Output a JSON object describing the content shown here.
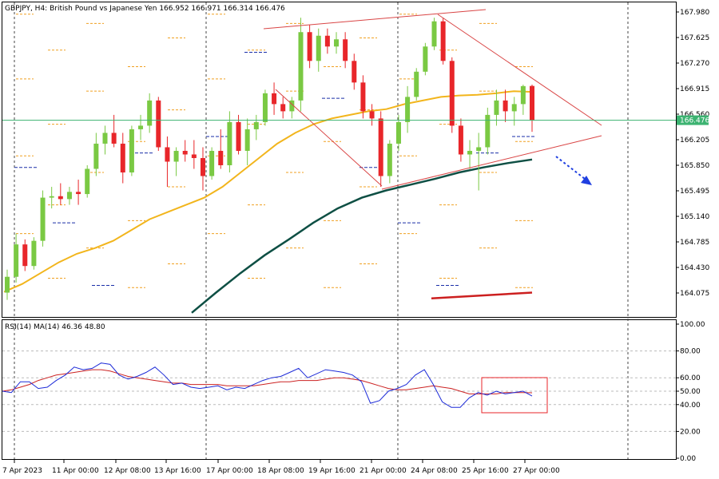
{
  "header": {
    "symbol_line": "GBPJPY, H4:  British Pound vs Japanese Yen  166.952 166.971 166.314 166.476"
  },
  "price_axis": {
    "ticks": [
      "167.980",
      "167.625",
      "167.270",
      "166.915",
      "166.560",
      "166.205",
      "165.850",
      "165.495",
      "165.140",
      "164.785",
      "164.430",
      "164.075"
    ],
    "current_price": "166.476"
  },
  "rsi_panel": {
    "label": "RSI(14) MA(14) 46.36 48.80",
    "ticks": [
      "100.00",
      "80.00",
      "60.00",
      "50.00",
      "40.00",
      "20.00",
      "0.00"
    ]
  },
  "time_axis": {
    "labels": [
      "7 Apr 2023",
      "11 Apr 00:00",
      "12 Apr 08:00",
      "13 Apr 16:00",
      "17 Apr 00:00",
      "18 Apr 08:00",
      "19 Apr 16:00",
      "21 Apr 00:00",
      "24 Apr 08:00",
      "25 Apr 16:00",
      "27 Apr 00:00"
    ]
  },
  "colors": {
    "bull": "#7ac943",
    "bear": "#e8262a",
    "ma_fast": "#f2b51c",
    "ma_slow": "#0e4f44",
    "ma_long": "#cc1f1f",
    "price_line": "#3cb371",
    "trendline": "#d94545",
    "rsi_line": "#1d2bd8",
    "rsi_ma": "#cc2222",
    "pivot_orange": "#f0a020",
    "pivot_blue": "#1a2ea8",
    "arrow": "#1f3fe0"
  },
  "chart_data": {
    "type": "candlestick",
    "timeframe": "H4",
    "candles": [
      {
        "o": 164.08,
        "h": 164.4,
        "l": 163.98,
        "c": 164.3
      },
      {
        "o": 164.3,
        "h": 164.9,
        "l": 164.22,
        "c": 164.75
      },
      {
        "o": 164.75,
        "h": 164.82,
        "l": 164.38,
        "c": 164.45
      },
      {
        "o": 164.45,
        "h": 164.85,
        "l": 164.4,
        "c": 164.8
      },
      {
        "o": 164.8,
        "h": 165.5,
        "l": 164.72,
        "c": 165.4
      },
      {
        "o": 165.4,
        "h": 165.55,
        "l": 165.25,
        "c": 165.42
      },
      {
        "o": 165.42,
        "h": 165.6,
        "l": 165.3,
        "c": 165.38
      },
      {
        "o": 165.38,
        "h": 165.55,
        "l": 165.3,
        "c": 165.48
      },
      {
        "o": 165.48,
        "h": 165.65,
        "l": 165.3,
        "c": 165.45
      },
      {
        "o": 165.45,
        "h": 165.85,
        "l": 165.4,
        "c": 165.8
      },
      {
        "o": 165.8,
        "h": 166.3,
        "l": 165.7,
        "c": 166.15
      },
      {
        "o": 166.15,
        "h": 166.4,
        "l": 166.0,
        "c": 166.3
      },
      {
        "o": 166.3,
        "h": 166.55,
        "l": 166.1,
        "c": 166.15
      },
      {
        "o": 166.15,
        "h": 166.3,
        "l": 165.6,
        "c": 165.75
      },
      {
        "o": 165.75,
        "h": 166.4,
        "l": 165.7,
        "c": 166.35
      },
      {
        "o": 166.35,
        "h": 166.55,
        "l": 166.2,
        "c": 166.4
      },
      {
        "o": 166.4,
        "h": 166.85,
        "l": 166.3,
        "c": 166.75
      },
      {
        "o": 166.75,
        "h": 166.8,
        "l": 166.05,
        "c": 166.1
      },
      {
        "o": 166.1,
        "h": 166.25,
        "l": 165.55,
        "c": 165.9
      },
      {
        "o": 165.9,
        "h": 166.1,
        "l": 165.7,
        "c": 166.05
      },
      {
        "o": 166.05,
        "h": 166.2,
        "l": 165.9,
        "c": 166.0
      },
      {
        "o": 166.0,
        "h": 166.2,
        "l": 165.8,
        "c": 165.95
      },
      {
        "o": 165.95,
        "h": 166.1,
        "l": 165.5,
        "c": 165.7
      },
      {
        "o": 165.7,
        "h": 166.1,
        "l": 165.65,
        "c": 166.05
      },
      {
        "o": 166.05,
        "h": 166.35,
        "l": 165.8,
        "c": 165.85
      },
      {
        "o": 165.85,
        "h": 166.6,
        "l": 165.75,
        "c": 166.45
      },
      {
        "o": 166.45,
        "h": 166.55,
        "l": 166.0,
        "c": 166.05
      },
      {
        "o": 166.05,
        "h": 166.5,
        "l": 165.85,
        "c": 166.35
      },
      {
        "o": 166.35,
        "h": 166.55,
        "l": 166.2,
        "c": 166.45
      },
      {
        "o": 166.45,
        "h": 166.9,
        "l": 166.4,
        "c": 166.85
      },
      {
        "o": 166.85,
        "h": 167.0,
        "l": 166.55,
        "c": 166.7
      },
      {
        "o": 166.7,
        "h": 166.8,
        "l": 166.5,
        "c": 166.6
      },
      {
        "o": 166.6,
        "h": 166.8,
        "l": 166.5,
        "c": 166.75
      },
      {
        "o": 166.75,
        "h": 167.9,
        "l": 166.6,
        "c": 167.7
      },
      {
        "o": 167.7,
        "h": 167.8,
        "l": 167.2,
        "c": 167.3
      },
      {
        "o": 167.3,
        "h": 167.75,
        "l": 167.15,
        "c": 167.65
      },
      {
        "o": 167.65,
        "h": 167.75,
        "l": 167.4,
        "c": 167.5
      },
      {
        "o": 167.5,
        "h": 167.7,
        "l": 167.4,
        "c": 167.6
      },
      {
        "o": 167.6,
        "h": 167.7,
        "l": 167.2,
        "c": 167.3
      },
      {
        "o": 167.3,
        "h": 167.4,
        "l": 166.9,
        "c": 167.0
      },
      {
        "o": 167.0,
        "h": 167.1,
        "l": 166.5,
        "c": 166.6
      },
      {
        "o": 166.6,
        "h": 166.7,
        "l": 166.4,
        "c": 166.5
      },
      {
        "o": 166.5,
        "h": 166.6,
        "l": 165.55,
        "c": 165.7
      },
      {
        "o": 165.7,
        "h": 166.2,
        "l": 165.6,
        "c": 166.15
      },
      {
        "o": 166.15,
        "h": 166.55,
        "l": 166.05,
        "c": 166.45
      },
      {
        "o": 166.45,
        "h": 166.95,
        "l": 166.3,
        "c": 166.8
      },
      {
        "o": 166.8,
        "h": 167.2,
        "l": 166.75,
        "c": 167.15
      },
      {
        "o": 167.15,
        "h": 167.55,
        "l": 167.1,
        "c": 167.5
      },
      {
        "o": 167.5,
        "h": 167.9,
        "l": 167.45,
        "c": 167.85
      },
      {
        "o": 167.85,
        "h": 167.9,
        "l": 167.25,
        "c": 167.3
      },
      {
        "o": 167.3,
        "h": 167.35,
        "l": 166.3,
        "c": 166.4
      },
      {
        "o": 166.4,
        "h": 166.5,
        "l": 165.9,
        "c": 166.0
      },
      {
        "o": 166.0,
        "h": 166.2,
        "l": 165.8,
        "c": 166.05
      },
      {
        "o": 166.05,
        "h": 166.3,
        "l": 165.5,
        "c": 166.1
      },
      {
        "o": 166.1,
        "h": 166.65,
        "l": 166.0,
        "c": 166.55
      },
      {
        "o": 166.55,
        "h": 166.9,
        "l": 166.4,
        "c": 166.75
      },
      {
        "o": 166.75,
        "h": 166.9,
        "l": 166.45,
        "c": 166.6
      },
      {
        "o": 166.6,
        "h": 166.8,
        "l": 166.4,
        "c": 166.7
      },
      {
        "o": 166.7,
        "h": 166.97,
        "l": 166.55,
        "c": 166.95
      },
      {
        "o": 166.952,
        "h": 166.971,
        "l": 166.314,
        "c": 166.476
      }
    ],
    "moving_averages": [
      {
        "name": "fast",
        "values": [
          164.09,
          164.2,
          164.35,
          164.5,
          164.62,
          164.7,
          164.8,
          164.95,
          165.1,
          165.2,
          165.3,
          165.4,
          165.55,
          165.75,
          165.95,
          166.15,
          166.3,
          166.42,
          166.5,
          166.55,
          166.6,
          166.63,
          166.7,
          166.75,
          166.8,
          166.82,
          166.83,
          166.85,
          166.88,
          166.87
        ]
      },
      {
        "name": "slow",
        "values": [
          163.8,
          164.08,
          164.35,
          164.6,
          164.82,
          165.05,
          165.25,
          165.4,
          165.5,
          165.58,
          165.66,
          165.75,
          165.82,
          165.88,
          165.93
        ]
      },
      {
        "name": "long",
        "values": [
          164.0,
          164.08
        ]
      }
    ],
    "pivot_levels_orange": [
      167.95,
      167.82,
      167.62,
      167.45,
      167.22,
      167.05,
      166.88,
      166.62,
      166.42,
      166.18,
      165.98,
      165.75,
      165.55,
      165.3,
      165.08,
      164.9,
      164.7,
      164.48,
      164.28,
      164.15
    ],
    "pivot_levels_blue": [
      165.82,
      165.05,
      164.18,
      166.02,
      166.25,
      167.42,
      166.78
    ],
    "ylim": [
      163.95,
      168.2
    ],
    "rsi": {
      "ylim": [
        0,
        100
      ],
      "rsi_values": [
        50,
        49,
        57,
        57,
        52,
        53,
        58,
        62,
        68,
        66,
        67,
        71,
        70,
        62,
        59,
        61,
        64,
        68,
        62,
        55,
        56,
        53,
        52,
        53,
        54,
        51,
        53,
        52,
        55,
        58,
        60,
        61,
        64,
        67,
        60,
        63,
        66,
        65,
        64,
        62,
        57,
        41,
        43,
        50,
        52,
        55,
        62,
        66,
        55,
        42,
        38,
        38,
        45,
        49,
        47,
        50,
        48,
        49,
        50,
        46.36
      ],
      "ma_values": [
        50,
        51,
        53,
        55,
        58,
        60,
        62,
        63,
        64,
        65,
        66,
        66,
        65,
        63,
        61,
        60,
        59,
        58,
        57,
        56,
        56,
        55,
        55,
        55,
        55,
        54,
        54,
        54,
        54,
        55,
        56,
        57,
        57,
        58,
        58,
        58,
        59,
        60,
        60,
        59,
        58,
        56,
        54,
        52,
        51,
        51,
        52,
        53,
        54,
        53,
        52,
        50,
        48,
        48,
        48,
        48,
        49,
        49,
        49,
        48.8
      ]
    }
  }
}
